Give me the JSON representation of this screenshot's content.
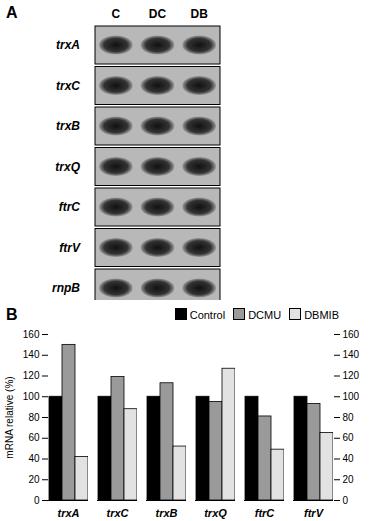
{
  "panel_a": {
    "label": "A",
    "lanes": [
      "C",
      "DC",
      "DB"
    ],
    "genes": [
      "trxA",
      "trxC",
      "trxB",
      "trxQ",
      "ftrC",
      "ftrV",
      "rnpB"
    ]
  },
  "chart_data": {
    "type": "bar",
    "title": "B",
    "y_label": "mRNA relative (%)",
    "categories": [
      "trxA",
      "trxC",
      "trxB",
      "trxQ",
      "ftrC",
      "ftrV"
    ],
    "series": [
      {
        "name": "Control",
        "color": "#000000",
        "values": [
          100,
          100,
          100,
          100,
          100,
          100
        ]
      },
      {
        "name": "DCMU",
        "color": "#9a9a9a",
        "values": [
          150,
          119,
          113,
          95,
          81,
          93
        ]
      },
      {
        "name": "DBMIB",
        "color": "#e2e2e2",
        "values": [
          42,
          88,
          52,
          127,
          49,
          65
        ]
      }
    ],
    "ylim": [
      0,
      160
    ],
    "yticks": [
      0,
      20,
      40,
      60,
      80,
      100,
      120,
      140,
      160
    ],
    "y2lim": [
      0,
      160
    ],
    "y2ticks": [
      0,
      20,
      40,
      60,
      80,
      100,
      120,
      140,
      160
    ],
    "legend": "top-right",
    "grid": false
  }
}
